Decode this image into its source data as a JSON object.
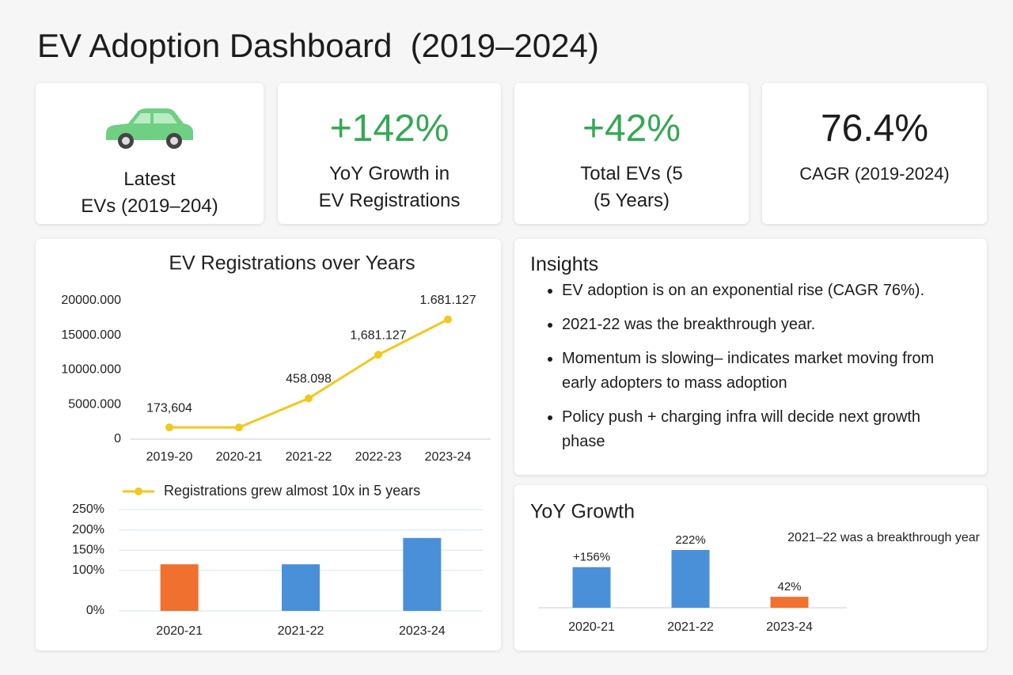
{
  "title": "EV Adoption Dashboard  (2019–2024)",
  "kpis": [
    {
      "label_lines": [
        "Latest",
        "EVs (2019–204)"
      ]
    },
    {
      "value": "+142%",
      "label_lines": [
        "YoY Growth in",
        "EV Registrations"
      ]
    },
    {
      "value": "+42%",
      "label_lines": [
        "Total EVs (5",
        "(5 Years)"
      ]
    },
    {
      "value": "76.4%",
      "label_lines": [
        "CAGR (2019-2024)"
      ]
    }
  ],
  "insights": {
    "title": "Insights",
    "items": [
      "EV adoption is on an exponential rise (CAGR 76%).",
      "2021-22 was the breakthrough year.",
      "Momentum is slowing– indicates market moving from early adopters to mass adoption",
      "Policy push + charging infra will decide next growth phase"
    ]
  },
  "chart_data": [
    {
      "type": "line",
      "title": "EV Registrations over Years",
      "categories": [
        "2019-20",
        "2020-21",
        "2021-22",
        "2022-23",
        "2023-24"
      ],
      "series": [
        {
          "name": "Registrations grew almost 10x in 5 years",
          "color": "#f2c81e",
          "values": [
            1700,
            1700,
            5900,
            12200,
            17300
          ]
        }
      ],
      "ylim": [
        0,
        20000
      ],
      "yticks": [
        0,
        {
          "value": 5000,
          "label": "5000.000"
        },
        {
          "value": 10000,
          "label": "10000.000"
        },
        {
          "value": 15000,
          "label": "15000.000"
        },
        {
          "value": 20000,
          "label": "20000.000"
        }
      ],
      "annotations": [
        {
          "category": "2019-20",
          "text": "173,604"
        },
        {
          "category": "2021-22",
          "text": "458.098"
        },
        {
          "category": "2022-23",
          "text": "1,681.127"
        },
        {
          "category": "2023-24",
          "text": "1.681.127"
        }
      ],
      "legend": "bottom",
      "grid": false
    },
    {
      "type": "bar",
      "categories": [
        "2020-21",
        "2021-22",
        "2023-24"
      ],
      "values": [
        115,
        115,
        180
      ],
      "colors": [
        "#f07030",
        "#4a90d9",
        "#4a90d9"
      ],
      "ylim": [
        0,
        250
      ],
      "yticks": [
        {
          "value": 0,
          "label": "0%"
        },
        {
          "value": 100,
          "label": "100%"
        },
        {
          "value": 150,
          "label": "150%"
        },
        {
          "value": 200,
          "label": "200%"
        },
        {
          "value": 250,
          "label": "250%"
        }
      ],
      "grid": true
    },
    {
      "type": "bar",
      "title": "YoY Growth",
      "categories": [
        "2020-21",
        "2021-22",
        "2023-24"
      ],
      "values": [
        156,
        222,
        42
      ],
      "value_labels": [
        "+156%",
        "222%",
        "42%"
      ],
      "colors": [
        "#4a90d9",
        "#4a90d9",
        "#f07030"
      ],
      "annotations": [
        {
          "text": "2021–22 was a breakthrough year"
        }
      ]
    }
  ]
}
